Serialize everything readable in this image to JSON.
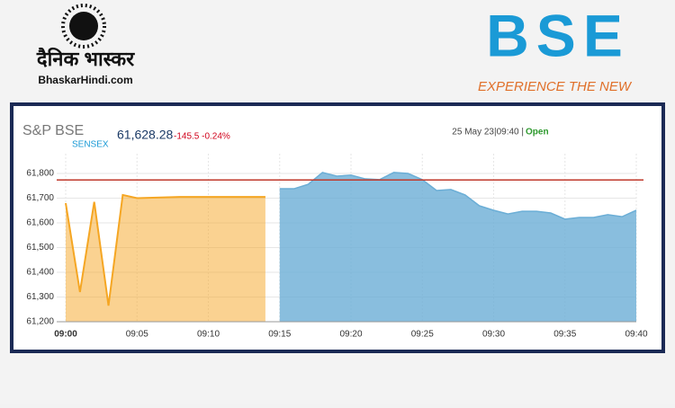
{
  "header": {
    "brand": "दैनिक भास्कर",
    "site": "BhaskarHindi.com",
    "logo": "BSE",
    "tagline": "EXPERIENCE THE NEW"
  },
  "chart_data": {
    "type": "area",
    "index_brand": "S&P BSE",
    "index_name": "SENSEX",
    "price": "61,628.28",
    "change": "-145.5 -0.24%",
    "timestamp": "25 May 23|09:40 |",
    "status": "Open",
    "series": [
      {
        "color": "#f5a623",
        "x": [
          0,
          1,
          2,
          3,
          4,
          5,
          8,
          14
        ],
        "values": [
          61680,
          61320,
          61685,
          61265,
          61713,
          61700,
          61705,
          61705
        ]
      },
      {
        "color": "#6baed6",
        "x": [
          15,
          16,
          17,
          18,
          19,
          20,
          21,
          22,
          23,
          24,
          25,
          26,
          27,
          28,
          29,
          30,
          31,
          32,
          33,
          34,
          35,
          36,
          37,
          38,
          39,
          40
        ],
        "values": [
          61738,
          61738,
          61756,
          61804,
          61789,
          61793,
          61778,
          61775,
          61804,
          61800,
          61775,
          61731,
          61735,
          61713,
          61669,
          61651,
          61636,
          61647,
          61647,
          61640,
          61615,
          61622,
          61622,
          61633,
          61625,
          61651
        ]
      }
    ],
    "reference_line": 61773.78,
    "reference_color": "#c0392b",
    "xlim": [
      0,
      40
    ],
    "ylim": [
      61200,
      61880
    ],
    "xticks": [
      {
        "value": 0,
        "label": "09:00"
      },
      {
        "value": 5,
        "label": "09:05"
      },
      {
        "value": 10,
        "label": "09:10"
      },
      {
        "value": 15,
        "label": "09:15"
      },
      {
        "value": 20,
        "label": "09:20"
      },
      {
        "value": 25,
        "label": "09:25"
      },
      {
        "value": 30,
        "label": "09:30"
      },
      {
        "value": 35,
        "label": "09:35"
      },
      {
        "value": 40,
        "label": "09:40"
      }
    ],
    "yticks": [
      {
        "value": 61200,
        "label": "61,200"
      },
      {
        "value": 61300,
        "label": "61,300"
      },
      {
        "value": 61400,
        "label": "61,400"
      },
      {
        "value": 61500,
        "label": "61,500"
      },
      {
        "value": 61600,
        "label": "61,600"
      },
      {
        "value": 61700,
        "label": "61,700"
      },
      {
        "value": 61800,
        "label": "61,800"
      }
    ],
    "grid": true
  }
}
